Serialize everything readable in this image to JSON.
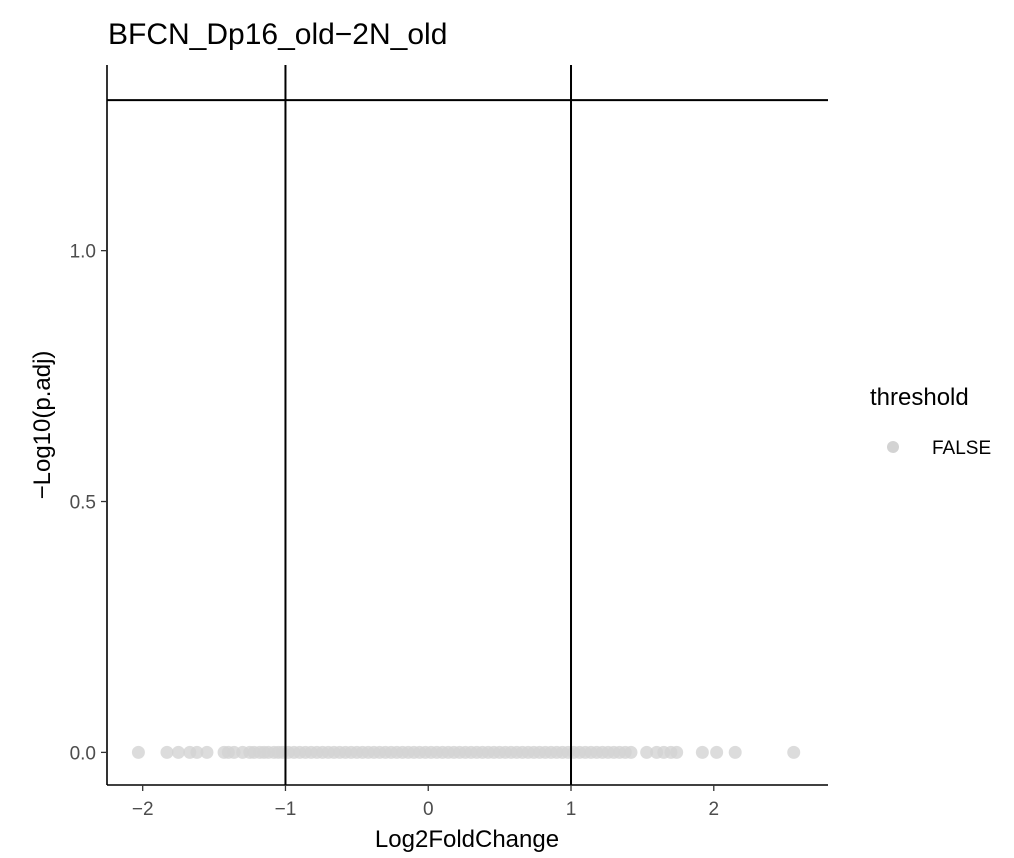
{
  "chart_data": {
    "type": "scatter",
    "title": "BFCN_Dp16_old−2N_old",
    "xlabel": "Log2FoldChange",
    "ylabel": "−Log10(p.adj)",
    "xlim": [
      -2.25,
      2.8
    ],
    "ylim": [
      -0.065,
      1.37
    ],
    "x_ticks": [
      -2,
      -1,
      0,
      1,
      2
    ],
    "x_tick_labels": [
      "−2",
      "−1",
      "0",
      "1",
      "2"
    ],
    "y_ticks": [
      0.0,
      0.5,
      1.0
    ],
    "y_tick_labels": [
      "0.0",
      "0.5",
      "1.0"
    ],
    "reference_lines": {
      "vertical": [
        -1,
        1
      ],
      "horizontal": [
        1.3
      ]
    },
    "grid": false,
    "legend": {
      "title": "threshold",
      "placement": "right",
      "entries": [
        {
          "label": "FALSE",
          "color": "#d3d3d3"
        }
      ]
    },
    "series": [
      {
        "name": "FALSE",
        "color": "#d3d3d3",
        "x": [
          -2.03,
          -1.83,
          -1.75,
          -1.67,
          -1.62,
          -1.55,
          -1.43,
          -1.4,
          -1.36,
          -1.3,
          -1.25,
          -1.22,
          -1.18,
          -1.15,
          -1.12,
          -1.08,
          -1.05,
          -1.02,
          -0.98,
          -0.94,
          -0.9,
          -0.86,
          -0.82,
          -0.78,
          -0.74,
          -0.7,
          -0.66,
          -0.62,
          -0.58,
          -0.54,
          -0.5,
          -0.46,
          -0.42,
          -0.38,
          -0.34,
          -0.3,
          -0.26,
          -0.22,
          -0.18,
          -0.14,
          -0.1,
          -0.06,
          -0.02,
          0.02,
          0.06,
          0.1,
          0.14,
          0.18,
          0.22,
          0.26,
          0.3,
          0.34,
          0.38,
          0.42,
          0.46,
          0.5,
          0.54,
          0.58,
          0.62,
          0.66,
          0.7,
          0.74,
          0.78,
          0.82,
          0.86,
          0.9,
          0.94,
          0.98,
          1.02,
          1.06,
          1.1,
          1.14,
          1.18,
          1.22,
          1.26,
          1.3,
          1.34,
          1.38,
          1.42,
          1.53,
          1.6,
          1.65,
          1.7,
          1.74,
          1.92,
          2.02,
          2.15,
          2.56
        ],
        "y": [
          0.0,
          0.0,
          0.0,
          0.0,
          0.0,
          0.0,
          0.0,
          0.0,
          0.0,
          0.0,
          0.0,
          0.0,
          0.0,
          0.0,
          0.0,
          0.0,
          0.0,
          0.0,
          0.0,
          0.0,
          0.0,
          0.0,
          0.0,
          0.0,
          0.0,
          0.0,
          0.0,
          0.0,
          0.0,
          0.0,
          0.0,
          0.0,
          0.0,
          0.0,
          0.0,
          0.0,
          0.0,
          0.0,
          0.0,
          0.0,
          0.0,
          0.0,
          0.0,
          0.0,
          0.0,
          0.0,
          0.0,
          0.0,
          0.0,
          0.0,
          0.0,
          0.0,
          0.0,
          0.0,
          0.0,
          0.0,
          0.0,
          0.0,
          0.0,
          0.0,
          0.0,
          0.0,
          0.0,
          0.0,
          0.0,
          0.0,
          0.0,
          0.0,
          0.0,
          0.0,
          0.0,
          0.0,
          0.0,
          0.0,
          0.0,
          0.0,
          0.0,
          0.0,
          0.0,
          0.0,
          0.0,
          0.0,
          0.0,
          0.0,
          0.0,
          0.0,
          0.0,
          0.0
        ]
      }
    ]
  }
}
